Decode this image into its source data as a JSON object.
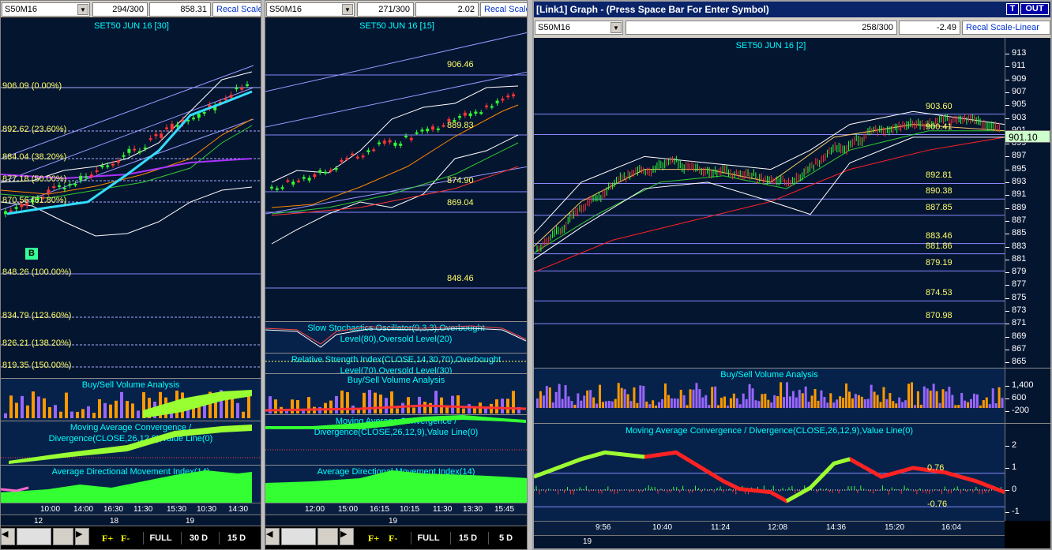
{
  "pane1": {
    "symbol": "S50M16",
    "bars": "294/300",
    "price": "858.31",
    "recal": "Recal Scale",
    "title": "SET50 JUN 16  [30]",
    "fib": [
      "906.09 (0.00%)",
      "892.62 (23.60%)",
      "884.04 (38.20%)",
      "877.18 (50.00%)",
      "870.56 (61.80%)",
      "848.26 (100.00%)",
      "834.79 (123.60%)",
      "826.21 (138.20%)",
      "819.35 (150.00%)"
    ],
    "marker": "B",
    "vol_title": "Buy/Sell Volume Analysis",
    "macd_title": "Moving Average Convergence / Divergence(CLOSE,26,12,9),Value Line(0)",
    "adx_title": "Average Directional Movement Index(14)",
    "times": [
      "10:00",
      "14:00",
      "16:30",
      "11:30",
      "15:30",
      "10:30",
      "14:30"
    ],
    "dates": [
      "12",
      "18",
      "19"
    ],
    "f_plus": "F+",
    "f_minus": "F-",
    "btns": [
      "FULL",
      "30 D",
      "15 D"
    ]
  },
  "pane2": {
    "symbol": "S50M16",
    "bars": "271/300",
    "price": "2.02",
    "recal": "Recal Scale",
    "title": "SET50 JUN 16  [15]",
    "levels": [
      "906.46",
      "889.83",
      "874.90",
      "869.04",
      "848.46"
    ],
    "stoch_title": "Slow Stochastics Oscillator(9,3,3),Overbought Level(80),Oversold Level(20)",
    "rsi_title": "Relative Strength Index(CLOSE,14,30,70),Overbought Level(70),Oversold Level(30)",
    "vol_title": "Buy/Sell Volume Analysis",
    "macd_title": "Moving Average Convergence / Divergence(CLOSE,26,12,9),Value Line(0)",
    "adx_title": "Average Directional Movement Index(14)",
    "times": [
      "12:00",
      "15:00",
      "16:15",
      "10:15",
      "11:30",
      "13:30",
      "15:45"
    ],
    "dates": [
      "19"
    ],
    "f_plus": "F+",
    "f_minus": "F-",
    "btns": [
      "FULL",
      "15 D",
      "5 D"
    ]
  },
  "pane3": {
    "window_title": "[Link1] Graph  - (Press Space Bar For Enter Symbol)",
    "t_btn": "T",
    "out_btn": "OUT",
    "symbol": "S50M16",
    "bars": "258/300",
    "price": "-2.49",
    "recal": "Recal Scale-Linear",
    "title": "SET50 JUN 16  [2]",
    "levels": [
      "903.60",
      "900.41",
      "892.81",
      "890.38",
      "887.85",
      "883.46",
      "881.86",
      "879.19",
      "874.53",
      "870.98"
    ],
    "current_price": "901.10",
    "yticks": [
      "913",
      "911",
      "909",
      "907",
      "905",
      "903",
      "901",
      "899",
      "897",
      "895",
      "893",
      "891",
      "889",
      "887",
      "885",
      "883",
      "881",
      "879",
      "877",
      "875",
      "873",
      "871",
      "869",
      "867",
      "865"
    ],
    "vol_title": "Buy/Sell Volume Analysis",
    "vol_ticks": [
      "1,400",
      "600",
      "-200"
    ],
    "macd_title": "Moving Average Convergence / Divergence(CLOSE,26,12,9),Value Line(0)",
    "macd_ticks": [
      "2",
      "1",
      "0",
      "-1"
    ],
    "macd_levels": [
      "0.76",
      "-0.76"
    ],
    "times": [
      "9:56",
      "10:40",
      "11:24",
      "12:08",
      "14:36",
      "15:20",
      "16:04"
    ],
    "dates": [
      "19"
    ]
  },
  "colors": {
    "bg": "#041530",
    "cyan": "#00ffff",
    "yellow": "#ffff66",
    "up": "#33ff33",
    "down": "#ff2222",
    "vol_buy": "#ff9900",
    "vol_sell": "#9966ff"
  }
}
